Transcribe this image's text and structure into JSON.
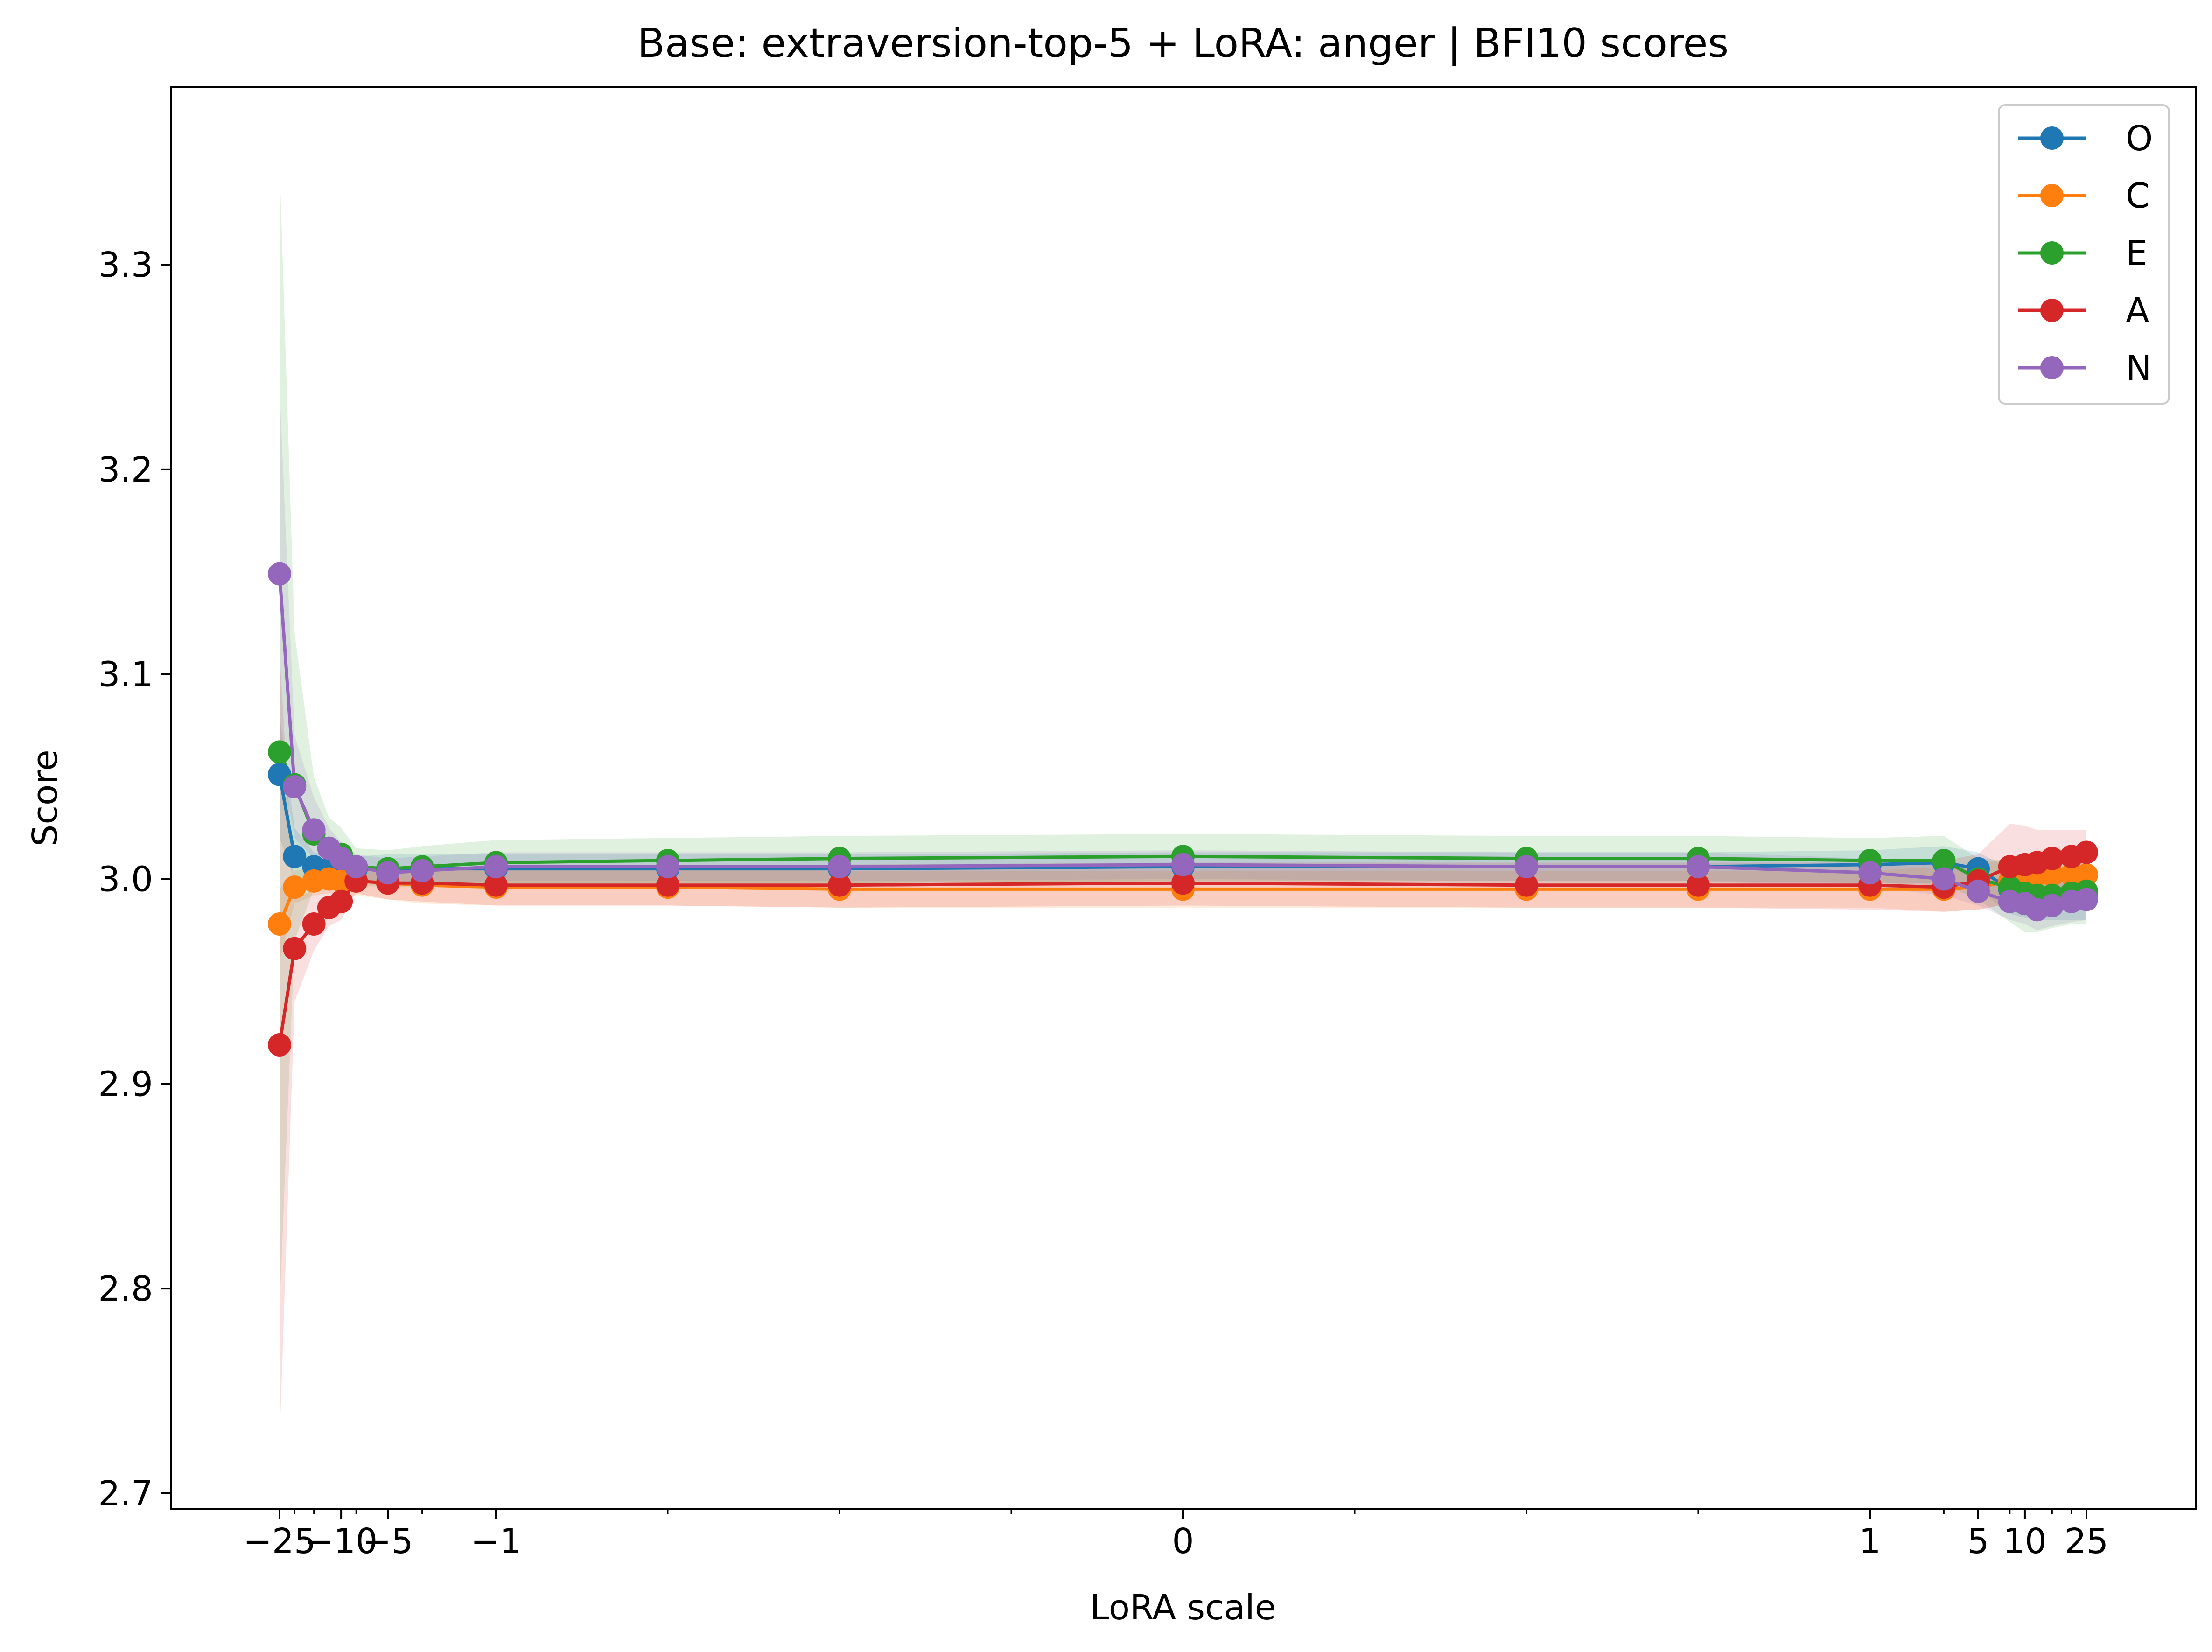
{
  "chart_data": {
    "type": "line",
    "title": "Base: extraversion-top-5 + LoRA: anger | BFI10 scores",
    "xlabel": "LoRA scale",
    "ylabel": "Score",
    "x_scale": "symlog",
    "xlim": [
      -40,
      40
    ],
    "ylim": [
      2.69,
      3.38
    ],
    "grid": false,
    "legend_position": "top-right",
    "x": [
      -25,
      -20,
      -15,
      -12,
      -10,
      -8,
      -5,
      -3,
      -1,
      -0.75,
      -0.5,
      0,
      0.5,
      0.75,
      1,
      3,
      5,
      8,
      10,
      12,
      15,
      20,
      25
    ],
    "xticks": [
      -25,
      -10,
      -5,
      -1,
      0,
      1,
      5,
      10,
      25
    ],
    "xtick_labels": [
      "−25",
      "−10",
      "−5",
      "−1",
      "0",
      "1",
      "5",
      "10",
      "25"
    ],
    "yticks": [
      2.7,
      2.8,
      2.9,
      3.0,
      3.1,
      3.2,
      3.3
    ],
    "ytick_labels": [
      "2.7",
      "2.8",
      "2.9",
      "3.0",
      "3.1",
      "3.2",
      "3.3"
    ],
    "series": [
      {
        "name": "O",
        "color": "#1f77b4",
        "values": [
          3.051,
          3.011,
          3.006,
          3.005,
          3.005,
          3.005,
          3.005,
          3.005,
          3.005,
          3.005,
          3.005,
          3.006,
          3.006,
          3.006,
          3.007,
          3.008,
          3.005,
          2.995,
          2.993,
          2.992,
          2.991,
          2.991,
          2.991
        ],
        "band": [
          [
            3.02,
            3.08
          ],
          [
            3.0,
            3.025
          ],
          [
            2.999,
            3.013
          ],
          [
            2.999,
            3.011
          ],
          [
            2.999,
            3.011
          ],
          [
            2.999,
            3.011
          ],
          [
            2.998,
            3.012
          ],
          [
            2.998,
            3.012
          ],
          [
            2.998,
            3.012
          ],
          [
            2.998,
            3.012
          ],
          [
            2.998,
            3.012
          ],
          [
            2.998,
            3.013
          ],
          [
            2.998,
            3.013
          ],
          [
            2.998,
            3.013
          ],
          [
            2.998,
            3.014
          ],
          [
            2.998,
            3.016
          ],
          [
            2.995,
            3.013
          ],
          [
            2.983,
            3.005
          ],
          [
            2.981,
            3.004
          ],
          [
            2.98,
            3.004
          ],
          [
            2.98,
            3.002
          ],
          [
            2.98,
            3.002
          ],
          [
            2.98,
            3.002
          ]
        ]
      },
      {
        "name": "C",
        "color": "#ff7f0e",
        "values": [
          2.978,
          2.996,
          2.999,
          3.0,
          2.999,
          2.999,
          2.998,
          2.997,
          2.996,
          2.996,
          2.995,
          2.995,
          2.995,
          2.995,
          2.995,
          2.995,
          2.996,
          2.999,
          3.001,
          3.002,
          3.002,
          3.002,
          3.002
        ],
        "band": [
          [
            2.96,
            2.995
          ],
          [
            2.988,
            3.004
          ],
          [
            2.992,
            3.006
          ],
          [
            2.993,
            3.007
          ],
          [
            2.992,
            3.006
          ],
          [
            2.992,
            3.006
          ],
          [
            2.99,
            3.006
          ],
          [
            2.988,
            3.006
          ],
          [
            2.987,
            3.005
          ],
          [
            2.987,
            3.005
          ],
          [
            2.986,
            3.004
          ],
          [
            2.986,
            3.004
          ],
          [
            2.986,
            3.004
          ],
          [
            2.986,
            3.004
          ],
          [
            2.986,
            3.004
          ],
          [
            2.984,
            3.006
          ],
          [
            2.985,
            3.007
          ],
          [
            2.988,
            3.01
          ],
          [
            2.99,
            3.012
          ],
          [
            2.99,
            3.014
          ],
          [
            2.99,
            3.014
          ],
          [
            2.99,
            3.014
          ],
          [
            2.99,
            3.014
          ]
        ]
      },
      {
        "name": "E",
        "color": "#2ca02c",
        "values": [
          3.062,
          3.046,
          3.022,
          3.015,
          3.012,
          3.006,
          3.005,
          3.006,
          3.008,
          3.009,
          3.01,
          3.011,
          3.01,
          3.01,
          3.009,
          3.009,
          3.0,
          2.996,
          2.993,
          2.992,
          2.992,
          2.993,
          2.994
        ],
        "band": [
          [
            2.79,
            3.35
          ],
          [
            2.97,
            3.12
          ],
          [
            2.995,
            3.05
          ],
          [
            3.0,
            3.03
          ],
          [
            3.0,
            3.025
          ],
          [
            2.997,
            3.015
          ],
          [
            2.996,
            3.014
          ],
          [
            2.996,
            3.016
          ],
          [
            2.997,
            3.019
          ],
          [
            2.998,
            3.02
          ],
          [
            2.998,
            3.021
          ],
          [
            2.999,
            3.022
          ],
          [
            2.999,
            3.021
          ],
          [
            2.999,
            3.021
          ],
          [
            2.998,
            3.02
          ],
          [
            2.997,
            3.021
          ],
          [
            2.99,
            3.01
          ],
          [
            2.979,
            3.009
          ],
          [
            2.974,
            3.01
          ],
          [
            2.974,
            3.01
          ],
          [
            2.976,
            3.008
          ],
          [
            2.978,
            3.008
          ],
          [
            2.978,
            3.008
          ]
        ]
      },
      {
        "name": "A",
        "color": "#d62728",
        "values": [
          2.919,
          2.966,
          2.978,
          2.986,
          2.989,
          2.999,
          2.998,
          2.998,
          2.997,
          2.997,
          2.997,
          2.998,
          2.997,
          2.997,
          2.997,
          2.996,
          2.999,
          3.006,
          3.007,
          3.008,
          3.01,
          3.011,
          3.013
        ],
        "band": [
          [
            2.725,
            3.11
          ],
          [
            2.94,
            2.99
          ],
          [
            2.965,
            2.995
          ],
          [
            2.977,
            2.998
          ],
          [
            2.98,
            2.998
          ],
          [
            2.993,
            3.005
          ],
          [
            2.99,
            3.004
          ],
          [
            2.989,
            3.004
          ],
          [
            2.987,
            3.006
          ],
          [
            2.987,
            3.006
          ],
          [
            2.986,
            3.007
          ],
          [
            2.987,
            3.008
          ],
          [
            2.986,
            3.008
          ],
          [
            2.986,
            3.008
          ],
          [
            2.985,
            3.008
          ],
          [
            2.984,
            3.009
          ],
          [
            2.985,
            3.012
          ],
          [
            2.988,
            3.027
          ],
          [
            2.99,
            3.026
          ],
          [
            2.992,
            3.024
          ],
          [
            2.994,
            3.024
          ],
          [
            2.996,
            3.024
          ],
          [
            2.998,
            3.024
          ]
        ]
      },
      {
        "name": "N",
        "color": "#9467bd",
        "values": [
          3.149,
          3.045,
          3.024,
          3.015,
          3.01,
          3.006,
          3.003,
          3.004,
          3.006,
          3.006,
          3.006,
          3.007,
          3.006,
          3.006,
          3.003,
          3.0,
          2.994,
          2.989,
          2.988,
          2.985,
          2.987,
          2.989,
          2.99
        ],
        "band": [
          [
            3.06,
            3.24
          ],
          [
            3.02,
            3.07
          ],
          [
            3.01,
            3.04
          ],
          [
            3.005,
            3.025
          ],
          [
            3.003,
            3.018
          ],
          [
            3.0,
            3.012
          ],
          [
            2.997,
            3.01
          ],
          [
            2.998,
            3.011
          ],
          [
            2.999,
            3.013
          ],
          [
            2.999,
            3.013
          ],
          [
            2.999,
            3.013
          ],
          [
            3.0,
            3.014
          ],
          [
            2.999,
            3.013
          ],
          [
            2.999,
            3.013
          ],
          [
            2.996,
            3.01
          ],
          [
            2.992,
            3.008
          ],
          [
            2.987,
            3.003
          ],
          [
            2.98,
            2.998
          ],
          [
            2.978,
            2.998
          ],
          [
            2.975,
            2.995
          ],
          [
            2.977,
            2.997
          ],
          [
            2.979,
            2.999
          ],
          [
            2.98,
            3.0
          ]
        ]
      }
    ]
  }
}
